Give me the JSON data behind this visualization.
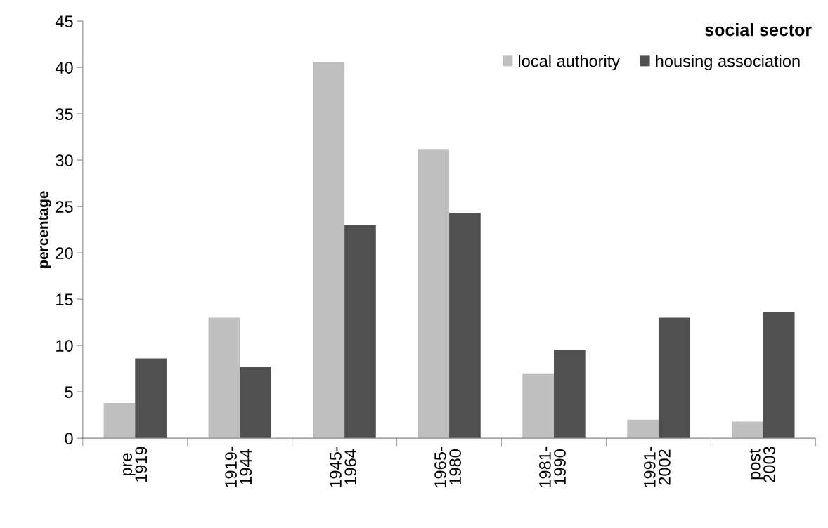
{
  "chart_data": {
    "type": "bar",
    "title": "social sector",
    "ylabel": "percentage",
    "categories": [
      "pre\n1919",
      "1919-\n1944",
      "1945-\n1964",
      "1965-\n1980",
      "1981-\n1990",
      "1991-\n2002",
      "post\n2003"
    ],
    "series": [
      {
        "name": "local authority",
        "color": "#bfbfbf",
        "values": [
          3.8,
          13.0,
          40.6,
          31.2,
          7.0,
          2.0,
          1.8
        ]
      },
      {
        "name": "housing association",
        "color": "#505050",
        "values": [
          8.6,
          7.7,
          23.0,
          24.3,
          9.5,
          13.0,
          13.6
        ]
      }
    ],
    "ylim": [
      0,
      45
    ],
    "yticks": [
      0,
      5,
      10,
      15,
      20,
      25,
      30,
      35,
      40,
      45
    ],
    "grid": false,
    "legend": "top right"
  }
}
